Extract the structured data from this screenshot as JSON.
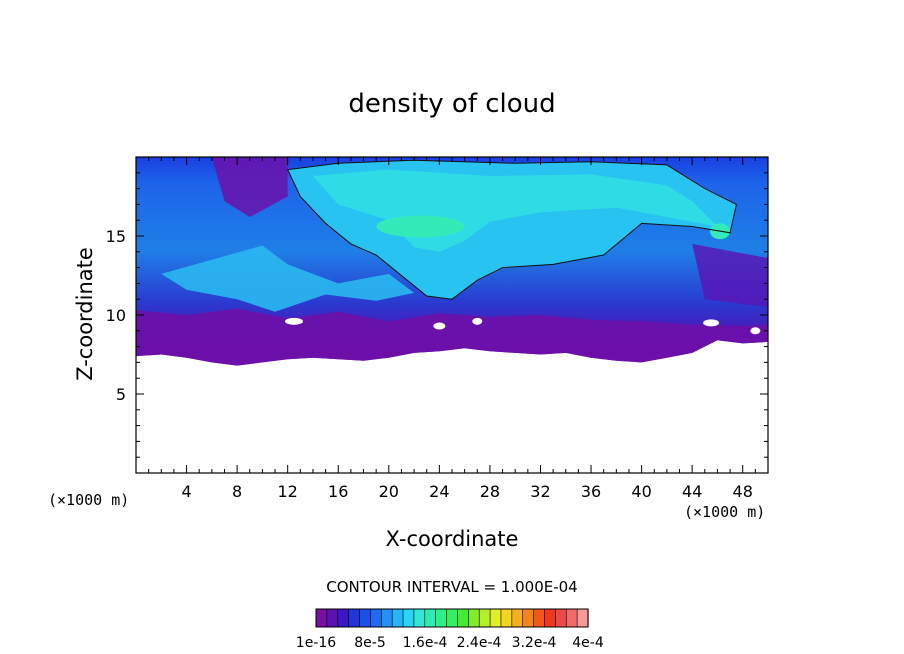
{
  "chart_data": {
    "type": "heatmap",
    "title": "density of cloud",
    "xlabel": "X-coordinate",
    "ylabel": "Z-coordinate",
    "x_unit": "(×1000 m)",
    "y_unit": "(×1000 m)",
    "xlim": [
      0,
      50
    ],
    "ylim": [
      0,
      20
    ],
    "x_ticks": [
      4,
      8,
      12,
      16,
      20,
      24,
      28,
      32,
      36,
      40,
      44,
      48
    ],
    "y_ticks": [
      5,
      10,
      15
    ],
    "contour_interval_text": "CONTOUR INTERVAL = 1.000E-04",
    "colorbar": {
      "colors": [
        "#7a0fa6",
        "#5a12b4",
        "#3a18c8",
        "#2236d8",
        "#1a50e6",
        "#1f6cf0",
        "#2390f6",
        "#27b4f8",
        "#2ad4f4",
        "#30e8d8",
        "#30ecb0",
        "#2ef088",
        "#34f060",
        "#46ea34",
        "#80ec2c",
        "#b6ee2a",
        "#e2ee28",
        "#f6d424",
        "#f6ae20",
        "#f6841c",
        "#f2561c",
        "#f0381e",
        "#ec4a4a",
        "#f06c6c",
        "#f49a9a"
      ],
      "labels": [
        "1e-16",
        "8e-5",
        "1.6e-4",
        "2.4e-4",
        "3.2e-4",
        "4e-4"
      ]
    },
    "cloud_region": {
      "base_profile": [
        [
          0,
          7.4
        ],
        [
          2,
          7.5
        ],
        [
          4,
          7.3
        ],
        [
          6,
          7.0
        ],
        [
          8,
          6.8
        ],
        [
          10,
          7.0
        ],
        [
          12,
          7.2
        ],
        [
          14,
          7.3
        ],
        [
          16,
          7.2
        ],
        [
          18,
          7.1
        ],
        [
          20,
          7.3
        ],
        [
          22,
          7.6
        ],
        [
          24,
          7.7
        ],
        [
          26,
          7.9
        ],
        [
          28,
          7.7
        ],
        [
          30,
          7.6
        ],
        [
          32,
          7.5
        ],
        [
          34,
          7.6
        ],
        [
          36,
          7.3
        ],
        [
          38,
          7.1
        ],
        [
          40,
          7.0
        ],
        [
          42,
          7.3
        ],
        [
          44,
          7.6
        ],
        [
          46,
          8.4
        ],
        [
          48,
          8.2
        ],
        [
          50,
          8.3
        ]
      ],
      "top_z": 20
    }
  }
}
